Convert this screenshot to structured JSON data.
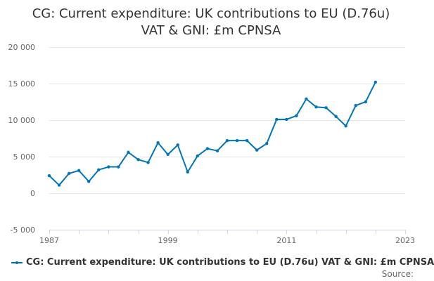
{
  "chart_title": {
    "line1": "CG: Current expenditure: UK contributions to EU (D.76u)",
    "line2": "VAT & GNI: £m CPNSA"
  },
  "source_label": "Source:",
  "colors": {
    "series": "#0076b8",
    "grid": "#e6e6e6",
    "axis": "#ccd6eb"
  },
  "chart_data": {
    "type": "line",
    "title": "CG: Current expenditure: UK contributions to EU (D.76u) VAT & GNI: £m CPNSA",
    "xlabel": "",
    "ylabel": "",
    "xlim": [
      1987,
      2023
    ],
    "ylim": [
      -5000,
      20000
    ],
    "grid": true,
    "legend_position": "bottom",
    "x_ticks": [
      1987,
      1999,
      2011,
      2023
    ],
    "x_tick_labels": [
      "1987",
      "1999",
      "2011",
      "2023"
    ],
    "y_ticks": [
      -5000,
      0,
      5000,
      10000,
      15000,
      20000
    ],
    "y_tick_labels": [
      "-5 000",
      "0",
      "5 000",
      "10 000",
      "15 000",
      "20 000"
    ],
    "series": [
      {
        "name": "CG: Current expenditure: UK contributions to EU (D.76u) VAT & GNI: £m CPNSA",
        "x": [
          1987,
          1988,
          1989,
          1990,
          1991,
          1992,
          1993,
          1994,
          1995,
          1996,
          1997,
          1998,
          1999,
          2000,
          2001,
          2002,
          2003,
          2004,
          2005,
          2006,
          2007,
          2008,
          2009,
          2010,
          2011,
          2012,
          2013,
          2014,
          2015,
          2016,
          2017,
          2018,
          2019,
          2020
        ],
        "values": [
          2400,
          1100,
          2700,
          3100,
          1600,
          3200,
          3600,
          3600,
          5600,
          4600,
          4200,
          6900,
          5300,
          6600,
          2900,
          5100,
          6100,
          5800,
          7200,
          7200,
          7200,
          5900,
          6800,
          10100,
          10100,
          10600,
          12900,
          11800,
          11700,
          10500,
          9200,
          12000,
          12500,
          15200
        ]
      }
    ]
  }
}
